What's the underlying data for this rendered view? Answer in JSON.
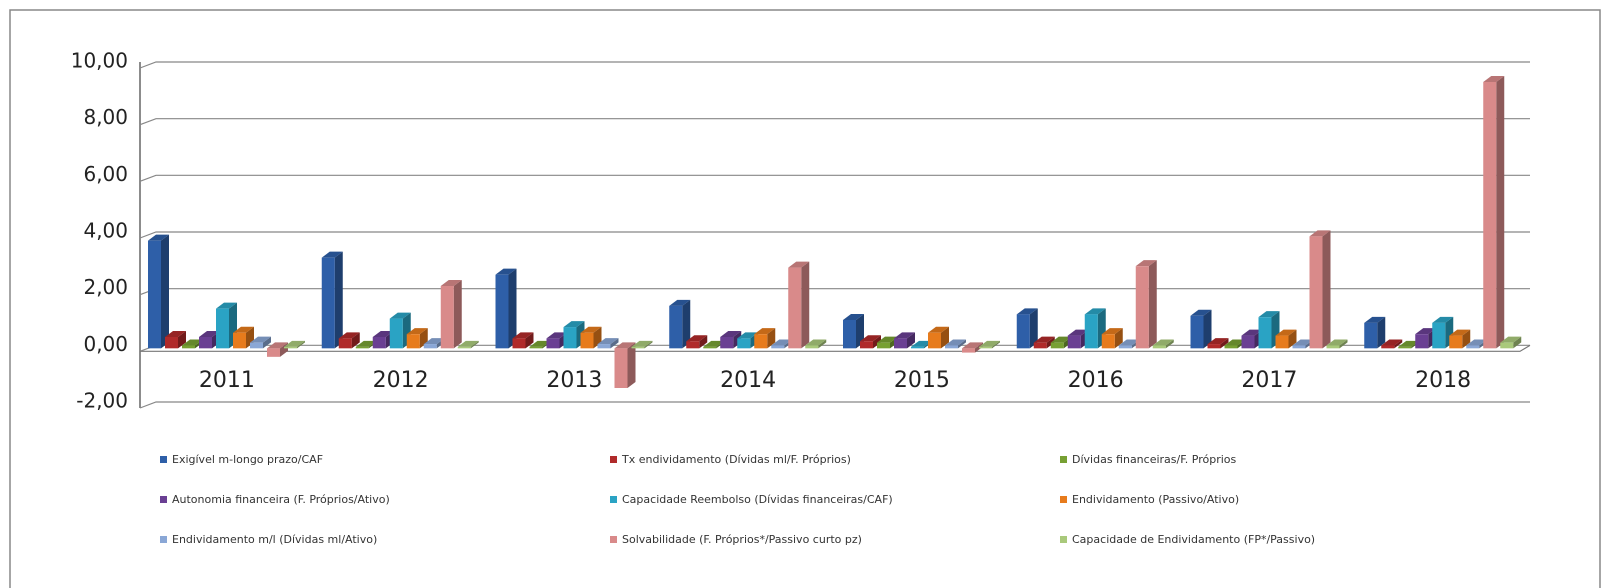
{
  "chart_data": {
    "type": "bar3d",
    "categories": [
      "2011",
      "2012",
      "2013",
      "2014",
      "2015",
      "2016",
      "2017",
      "2018"
    ],
    "ylim": [
      -2,
      10
    ],
    "yticks": [
      {
        "value": -2,
        "label": "-2,00"
      },
      {
        "value": 0,
        "label": "0,00"
      },
      {
        "value": 2,
        "label": "2,00"
      },
      {
        "value": 4,
        "label": "4,00"
      },
      {
        "value": 6,
        "label": "6,00"
      },
      {
        "value": 8,
        "label": "8,00"
      },
      {
        "value": 10,
        "label": "10,00"
      }
    ],
    "grid": true,
    "series": [
      {
        "name": "Exigível m-longo prazo/CAF",
        "color": "#2e5fa8",
        "values": [
          3.8,
          3.2,
          2.6,
          1.5,
          1.0,
          1.2,
          1.15,
          0.9
        ]
      },
      {
        "name": "Tx endividamento (Dívidas ml/F. Próprios)",
        "color": "#b02a2a",
        "values": [
          0.4,
          0.35,
          0.35,
          0.25,
          0.25,
          0.2,
          0.15,
          0.1
        ]
      },
      {
        "name": "Dívidas financeiras/F. Próprios",
        "color": "#77a033",
        "values": [
          0.1,
          0.05,
          0.05,
          0.05,
          0.2,
          0.2,
          0.1,
          0.05
        ]
      },
      {
        "name": "Autonomia financeira (F. Próprios/Ativo)",
        "color": "#6a3f93",
        "values": [
          0.4,
          0.4,
          0.35,
          0.4,
          0.35,
          0.45,
          0.45,
          0.5
        ]
      },
      {
        "name": "Capacidade Reembolso (Dívidas financeiras/CAF)",
        "color": "#2aa3c4",
        "values": [
          1.4,
          1.05,
          0.75,
          0.35,
          0.05,
          1.2,
          1.1,
          0.9
        ]
      },
      {
        "name": "Endividamento (Passivo/Ativo)",
        "color": "#e77b1c",
        "values": [
          0.55,
          0.5,
          0.55,
          0.5,
          0.55,
          0.5,
          0.45,
          0.45
        ]
      },
      {
        "name": "Endividamento m/l (Dívidas ml/Ativo)",
        "color": "#8aa7d6",
        "values": [
          0.2,
          0.15,
          0.15,
          0.1,
          0.1,
          0.1,
          0.1,
          0.1
        ]
      },
      {
        "name": "Solvabilidade (F. Próprios*/Passivo curto pz)",
        "color": "#d98a8a",
        "values": [
          -0.3,
          2.2,
          -1.4,
          2.85,
          -0.15,
          2.9,
          3.95,
          9.4
        ]
      },
      {
        "name": "Capacidade de Endividamento (FP*/Passivo)",
        "color": "#a9c97b",
        "values": [
          0.05,
          0.05,
          0.05,
          0.1,
          0.05,
          0.1,
          0.1,
          0.2
        ]
      }
    ]
  }
}
